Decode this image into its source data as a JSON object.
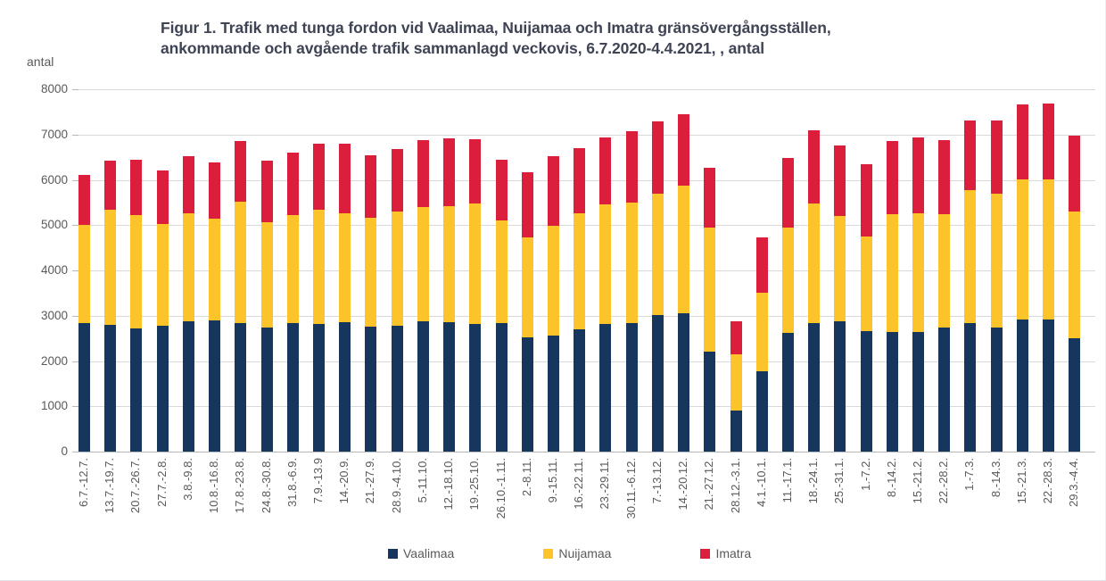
{
  "title": {
    "line1": "Figur 1. Trafik med tunga fordon vid Vaalimaa, Nuijamaa och Imatra gränsövergångsställen,",
    "line2": "ankommande och avgående trafik sammanlagd veckovis, 6.7.2020-4.4.2021, ,  antal",
    "color": "#3f4454"
  },
  "y_axis": {
    "unit": "antal",
    "ticks": [
      0,
      1000,
      2000,
      3000,
      4000,
      5000,
      6000,
      7000,
      8000
    ],
    "max": 8000
  },
  "colors": {
    "gridline": "#d9d9d9",
    "axis": "#b7b7b7",
    "tick_text": "#595959"
  },
  "chart_data": {
    "type": "bar",
    "stacked": true,
    "title": "Figur 1. Trafik med tunga fordon vid Vaalimaa, Nuijamaa och Imatra gränsövergångsställen, ankommande och avgående trafik sammanlagd veckovis, 6.7.2020-4.4.2021, antal",
    "xlabel": "",
    "ylabel": "antal",
    "ylim": [
      0,
      8000
    ],
    "grid": true,
    "legend_position": "bottom",
    "categories": [
      "6.7.-12.7.",
      "13.7.-19.7.",
      "20.7.-26.7.",
      "27.7.-2.8.",
      "3.8.-9.8.",
      "10.8.-16.8.",
      "17.8.-23.8.",
      "24.8.-30.8.",
      "31.8.-6.9.",
      "7.9.-13.9",
      "14.-20.9.",
      "21.-27.9.",
      "28.9.-4.10.",
      "5.-11.10.",
      "12.-18.10.",
      "19.-25.10.",
      "26.10.-1.11.",
      "2.-8.11.",
      "9.-15.11.",
      "16.-22.11.",
      "23.-29.11.",
      "30.11.-6.12.",
      "7.-13.12.",
      "14.-20.12.",
      "21.-27.12.",
      "28.12.-3.1.",
      "4.1.-10.1.",
      "11.-17.1.",
      "18.-24.1.",
      "25.-31.1.",
      "1.-7.2.",
      "8.-14.2.",
      "15.-21.2.",
      "22.-28.2.",
      "1.-7.3.",
      "8.-14.3.",
      "15.-21.3.",
      "22.-28.3.",
      "29.3.-4.4."
    ],
    "series": [
      {
        "name": "Vaalimaa",
        "color": "#17365d",
        "values": [
          2840,
          2790,
          2710,
          2780,
          2880,
          2890,
          2840,
          2730,
          2840,
          2810,
          2850,
          2760,
          2780,
          2880,
          2860,
          2820,
          2840,
          2530,
          2570,
          2700,
          2810,
          2830,
          3010,
          3060,
          2210,
          900,
          1770,
          2620,
          2840,
          2880,
          2660,
          2640,
          2650,
          2740,
          2830,
          2740,
          2920,
          2920,
          2510
        ]
      },
      {
        "name": "Nuijamaa",
        "color": "#fdc32b",
        "values": [
          2160,
          2550,
          2510,
          2240,
          2380,
          2250,
          2680,
          2340,
          2380,
          2530,
          2410,
          2400,
          2530,
          2510,
          2560,
          2660,
          2270,
          2190,
          2410,
          2570,
          2640,
          2670,
          2680,
          2810,
          2740,
          1250,
          1740,
          2320,
          2640,
          2320,
          2090,
          2600,
          2610,
          2510,
          2950,
          2950,
          3100,
          3090,
          2800
        ]
      },
      {
        "name": "Imatra",
        "color": "#db1e3b",
        "values": [
          1100,
          1080,
          1230,
          1180,
          1260,
          1250,
          1340,
          1360,
          1390,
          1450,
          1530,
          1380,
          1380,
          1490,
          1500,
          1410,
          1340,
          1450,
          1540,
          1430,
          1490,
          1580,
          1600,
          1580,
          1310,
          730,
          1210,
          1550,
          1620,
          1560,
          1590,
          1610,
          1680,
          1630,
          1530,
          1630,
          1640,
          1680,
          1670
        ]
      }
    ]
  }
}
